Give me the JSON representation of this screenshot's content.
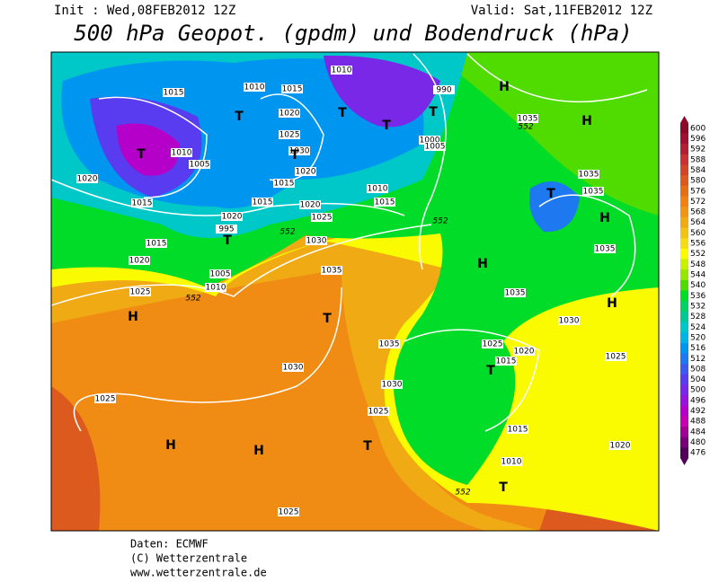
{
  "header": {
    "init": "Init : Wed,08FEB2012 12Z",
    "valid": "Valid: Sat,11FEB2012 12Z",
    "title": "500 hPa Geopot. (gpdm) und Bodendruck (hPa)"
  },
  "map": {
    "isobar_labels": [
      "1015",
      "1010",
      "1015",
      "1010",
      "990",
      "1020",
      "1025",
      "1030",
      "1020",
      "1015",
      "1010",
      "1015",
      "1020",
      "1025",
      "1030",
      "1035",
      "1020",
      "995",
      "1015",
      "1010",
      "1005",
      "1020",
      "1015",
      "1015",
      "1020",
      "1025",
      "1005",
      "1010",
      "1035",
      "1035",
      "1035",
      "1035",
      "1035",
      "1030",
      "1025",
      "1020",
      "1025",
      "1015",
      "1035",
      "1030",
      "1030",
      "1025",
      "1025",
      "1015",
      "1010",
      "1020",
      "1025",
      "1000",
      "1005"
    ],
    "pressure_centers": [
      "H",
      "H",
      "T",
      "T",
      "T",
      "T",
      "T",
      "T",
      "T",
      "T",
      "H",
      "H",
      "H",
      "T",
      "H",
      "T",
      "H",
      "H",
      "T",
      "T"
    ],
    "contour_552_labels": [
      "552",
      "552",
      "552",
      "552",
      "552"
    ]
  },
  "legend": {
    "labels": [
      "600",
      "596",
      "592",
      "588",
      "584",
      "580",
      "576",
      "572",
      "568",
      "564",
      "560",
      "556",
      "552",
      "548",
      "544",
      "540",
      "536",
      "532",
      "528",
      "524",
      "520",
      "516",
      "512",
      "508",
      "504",
      "500",
      "496",
      "492",
      "488",
      "484",
      "480",
      "476"
    ],
    "colors": [
      "#8b0a2a",
      "#a01030",
      "#b41e32",
      "#c83232",
      "#d24628",
      "#dc5a1e",
      "#e66e14",
      "#f08214",
      "#f09614",
      "#f0aa14",
      "#f0c314",
      "#f5dc14",
      "#fafa00",
      "#c8f000",
      "#96e600",
      "#50dc00",
      "#00dc28",
      "#00d264",
      "#00c896",
      "#00c8c8",
      "#00b4e6",
      "#0096f0",
      "#1e78f0",
      "#3c5af0",
      "#5a3cf0",
      "#7828e6",
      "#9614dc",
      "#b400c8",
      "#c800b4",
      "#a00096",
      "#780078",
      "#50005a"
    ]
  },
  "footer": [
    "Daten: ECMWF",
    "(C) Wetterzentrale",
    "www.wetterzentrale.de"
  ]
}
